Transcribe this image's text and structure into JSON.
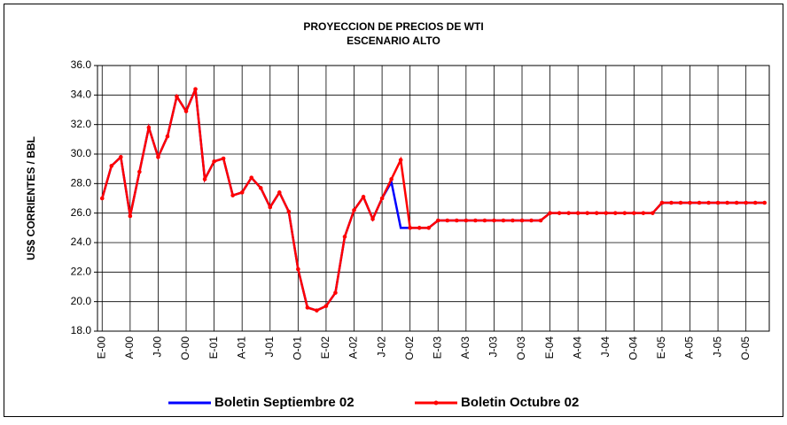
{
  "chart_data": {
    "type": "line",
    "title": "PROYECCION DE PRECIOS DE WTI",
    "subtitle": "ESCENARIO ALTO",
    "y_label": "US$ CORRIENTES / BBL",
    "categories": [
      "E-00",
      null,
      null,
      "A-00",
      null,
      null,
      "J-00",
      null,
      null,
      "O-00",
      null,
      null,
      "E-01",
      null,
      null,
      "A-01",
      null,
      null,
      "J-01",
      null,
      null,
      "O-01",
      null,
      null,
      "E-02",
      null,
      null,
      "A-02",
      null,
      null,
      "J-02",
      null,
      null,
      "O-02",
      null,
      null,
      "E-03",
      null,
      null,
      "A-03",
      null,
      null,
      "J-03",
      null,
      null,
      "O-03",
      null,
      null,
      "E-04",
      null,
      null,
      "A-04",
      null,
      null,
      "J-04",
      null,
      null,
      "O-04",
      null,
      null,
      "E-05",
      null,
      null,
      "A-05",
      null,
      null,
      "J-05",
      null,
      null,
      "O-05",
      null,
      null
    ],
    "series": [
      {
        "name": "Boletin Septiembre 02",
        "color": "#0000ff",
        "markers": false,
        "values": [
          27.0,
          29.2,
          29.8,
          25.8,
          28.8,
          31.8,
          29.8,
          31.2,
          33.9,
          32.9,
          34.4,
          28.3,
          29.5,
          29.7,
          27.2,
          27.4,
          28.4,
          27.7,
          26.4,
          27.4,
          26.1,
          22.2,
          19.6,
          19.4,
          19.7,
          20.6,
          24.4,
          26.2,
          27.1,
          25.6,
          27.0,
          28.1,
          25.0,
          25.0,
          25.0,
          25.0,
          25.5,
          25.5,
          25.5,
          25.5,
          25.5,
          25.5,
          25.5,
          25.5,
          25.5,
          25.5,
          25.5,
          25.5,
          26.0,
          26.0,
          26.0,
          26.0,
          26.0,
          26.0,
          26.0,
          26.0,
          26.0,
          26.0,
          26.0,
          26.0,
          26.7,
          26.7,
          26.7,
          26.7,
          26.7,
          26.7,
          26.7,
          26.7,
          26.7,
          26.7,
          26.7,
          26.7
        ]
      },
      {
        "name": "Boletin Octubre 02",
        "color": "#ff0000",
        "markers": true,
        "values": [
          27.0,
          29.2,
          29.8,
          25.8,
          28.8,
          31.8,
          29.8,
          31.2,
          33.9,
          32.9,
          34.4,
          28.3,
          29.5,
          29.7,
          27.2,
          27.4,
          28.4,
          27.7,
          26.4,
          27.4,
          26.1,
          22.2,
          19.6,
          19.4,
          19.7,
          20.6,
          24.4,
          26.2,
          27.1,
          25.6,
          27.0,
          28.3,
          29.6,
          25.0,
          25.0,
          25.0,
          25.5,
          25.5,
          25.5,
          25.5,
          25.5,
          25.5,
          25.5,
          25.5,
          25.5,
          25.5,
          25.5,
          25.5,
          26.0,
          26.0,
          26.0,
          26.0,
          26.0,
          26.0,
          26.0,
          26.0,
          26.0,
          26.0,
          26.0,
          26.0,
          26.7,
          26.7,
          26.7,
          26.7,
          26.7,
          26.7,
          26.7,
          26.7,
          26.7,
          26.7,
          26.7,
          26.7
        ]
      }
    ],
    "ylim": [
      18,
      36
    ],
    "yticks": [
      {
        "value": 18,
        "label": "18.0"
      },
      {
        "value": 20,
        "label": "20.0"
      },
      {
        "value": 22,
        "label": "22.0"
      },
      {
        "value": 24,
        "label": "24.0"
      },
      {
        "value": 26,
        "label": "26.0"
      },
      {
        "value": 28,
        "label": "28.0"
      },
      {
        "value": 30,
        "label": "30.0"
      },
      {
        "value": 32,
        "label": "32.0"
      },
      {
        "value": 34,
        "label": "34.0"
      },
      {
        "value": 36,
        "label": "36.0"
      }
    ],
    "grid": true,
    "legend": "bottom"
  }
}
